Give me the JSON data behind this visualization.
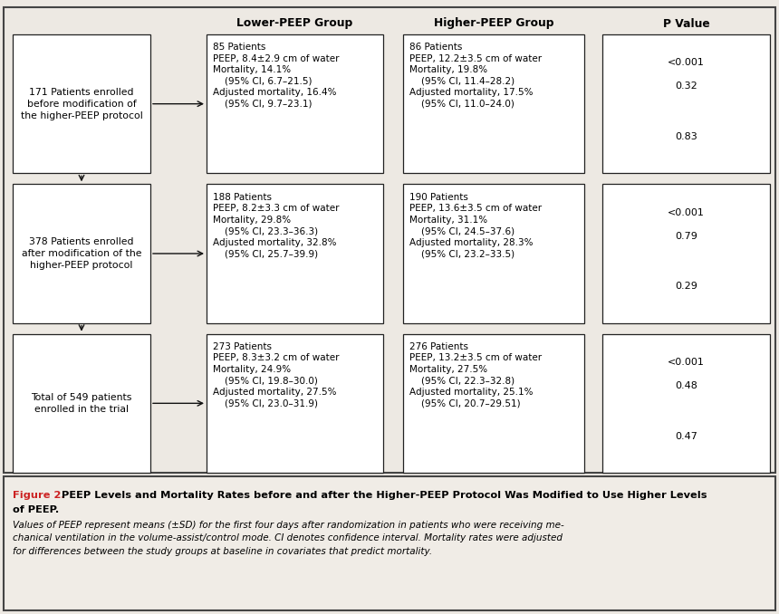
{
  "bg_color": "#ede9e3",
  "box_color": "#ffffff",
  "border_color": "#222222",
  "caption_bg": "#f0ece6",
  "header_row": {
    "lower_peep": "Lower-PEEP Group",
    "higher_peep": "Higher-PEEP Group",
    "p_value": "P Value"
  },
  "left_boxes": [
    [
      "171 Patients enrolled",
      "before modification of",
      "the higher-PEEP protocol"
    ],
    [
      "378 Patients enrolled",
      "after modification of the",
      "higher-PEEP protocol"
    ],
    [
      "Total of 549 patients",
      "enrolled in the trial"
    ]
  ],
  "lower_peep_boxes": [
    [
      "85 Patients",
      "PEEP, 8.4±2.9 cm of water",
      "Mortality, 14.1%",
      "    (95% CI, 6.7–21.5)",
      "Adjusted mortality, 16.4%",
      "    (95% CI, 9.7–23.1)"
    ],
    [
      "188 Patients",
      "PEEP, 8.2±3.3 cm of water",
      "Mortality, 29.8%",
      "    (95% CI, 23.3–36.3)",
      "Adjusted mortality, 32.8%",
      "    (95% CI, 25.7–39.9)"
    ],
    [
      "273 Patients",
      "PEEP, 8.3±3.2 cm of water",
      "Mortality, 24.9%",
      "    (95% CI, 19.8–30.0)",
      "Adjusted mortality, 27.5%",
      "    (95% CI, 23.0–31.9)"
    ]
  ],
  "higher_peep_boxes": [
    [
      "86 Patients",
      "PEEP, 12.2±3.5 cm of water",
      "Mortality, 19.8%",
      "    (95% CI, 11.4–28.2)",
      "Adjusted mortality, 17.5%",
      "    (95% CI, 11.0–24.0)"
    ],
    [
      "190 Patients",
      "PEEP, 13.6±3.5 cm of water",
      "Mortality, 31.1%",
      "    (95% CI, 24.5–37.6)",
      "Adjusted mortality, 28.3%",
      "    (95% CI, 23.2–33.5)"
    ],
    [
      "276 Patients",
      "PEEP, 13.2±3.5 cm of water",
      "Mortality, 27.5%",
      "    (95% CI, 22.3–32.8)",
      "Adjusted mortality, 25.1%",
      "    (95% CI, 20.7–29.51)"
    ]
  ],
  "p_value_boxes": [
    [
      "<0.001",
      "0.32",
      "",
      "0.83"
    ],
    [
      "<0.001",
      "0.79",
      "",
      "0.29"
    ],
    [
      "<0.001",
      "0.48",
      "",
      "0.47"
    ]
  ],
  "caption_label": "Figure 2.",
  "caption_title": " PEEP Levels and Mortality Rates before and after the Higher-PEEP Protocol Was Modified to Use Higher Levels",
  "caption_title2": "of PEEP.",
  "caption_body": "Values of PEEP represent means (±SD) for the first four days after randomization in patients who were receiving me-\nchanical ventilation in the volume-assist/control mode. CI denotes confidence interval. Mortality rates were adjusted\nfor differences between the study groups at baseline in covariates that predict mortality.",
  "caption_red": "#cc2222"
}
